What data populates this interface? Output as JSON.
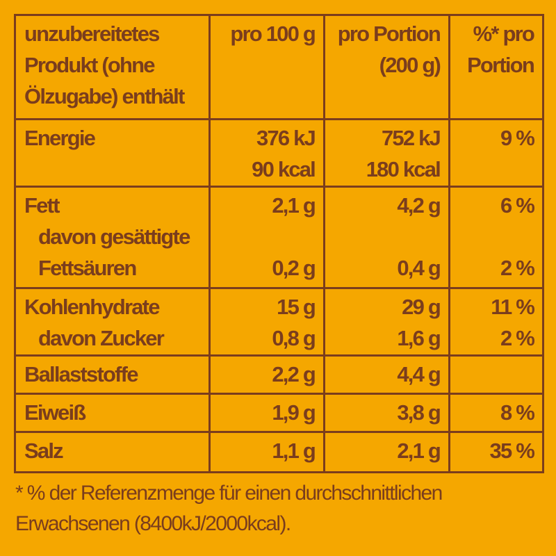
{
  "header": {
    "col1": [
      "unzubereitetes",
      "Produkt (ohne",
      "Ölzugabe) enthält"
    ],
    "col2": [
      "pro 100 g"
    ],
    "col3": [
      "pro Portion",
      "(200 g)"
    ],
    "col4": [
      "%* pro",
      "Portion"
    ]
  },
  "rows": [
    {
      "label": [
        "Energie"
      ],
      "per100": [
        "376 kJ",
        "90 kcal"
      ],
      "portion": [
        "752 kJ",
        "180 kcal"
      ],
      "pct": [
        "9 %"
      ]
    },
    {
      "label": [
        "Fett",
        "davon gesättigte",
        "Fettsäuren"
      ],
      "per100": [
        "2,1 g",
        "",
        "0,2 g"
      ],
      "portion": [
        "4,2 g",
        "",
        "0,4 g"
      ],
      "pct": [
        "6 %",
        "",
        "2 %"
      ]
    },
    {
      "label": [
        "Kohlenhydrate",
        "davon Zucker"
      ],
      "per100": [
        "15 g",
        "0,8 g"
      ],
      "portion": [
        "29 g",
        "1,6 g"
      ],
      "pct": [
        "11 %",
        "2 %"
      ]
    },
    {
      "label": [
        "Ballaststoffe"
      ],
      "per100": [
        "2,2 g"
      ],
      "portion": [
        "4,4 g"
      ],
      "pct": [
        ""
      ]
    },
    {
      "label": [
        "Eiweiß"
      ],
      "per100": [
        "1,9 g"
      ],
      "portion": [
        "3,8 g"
      ],
      "pct": [
        "8 %"
      ]
    },
    {
      "label": [
        "Salz"
      ],
      "per100": [
        "1,1 g"
      ],
      "portion": [
        "2,1 g"
      ],
      "pct": [
        "35 %"
      ]
    }
  ],
  "footnote": [
    "* % der Referenzmenge für einen durchschnittlichen",
    "Erwachsenen (8400kJ/2000kcal)."
  ],
  "colors": {
    "background": "#F5A700",
    "text": "#7A3D1D"
  }
}
